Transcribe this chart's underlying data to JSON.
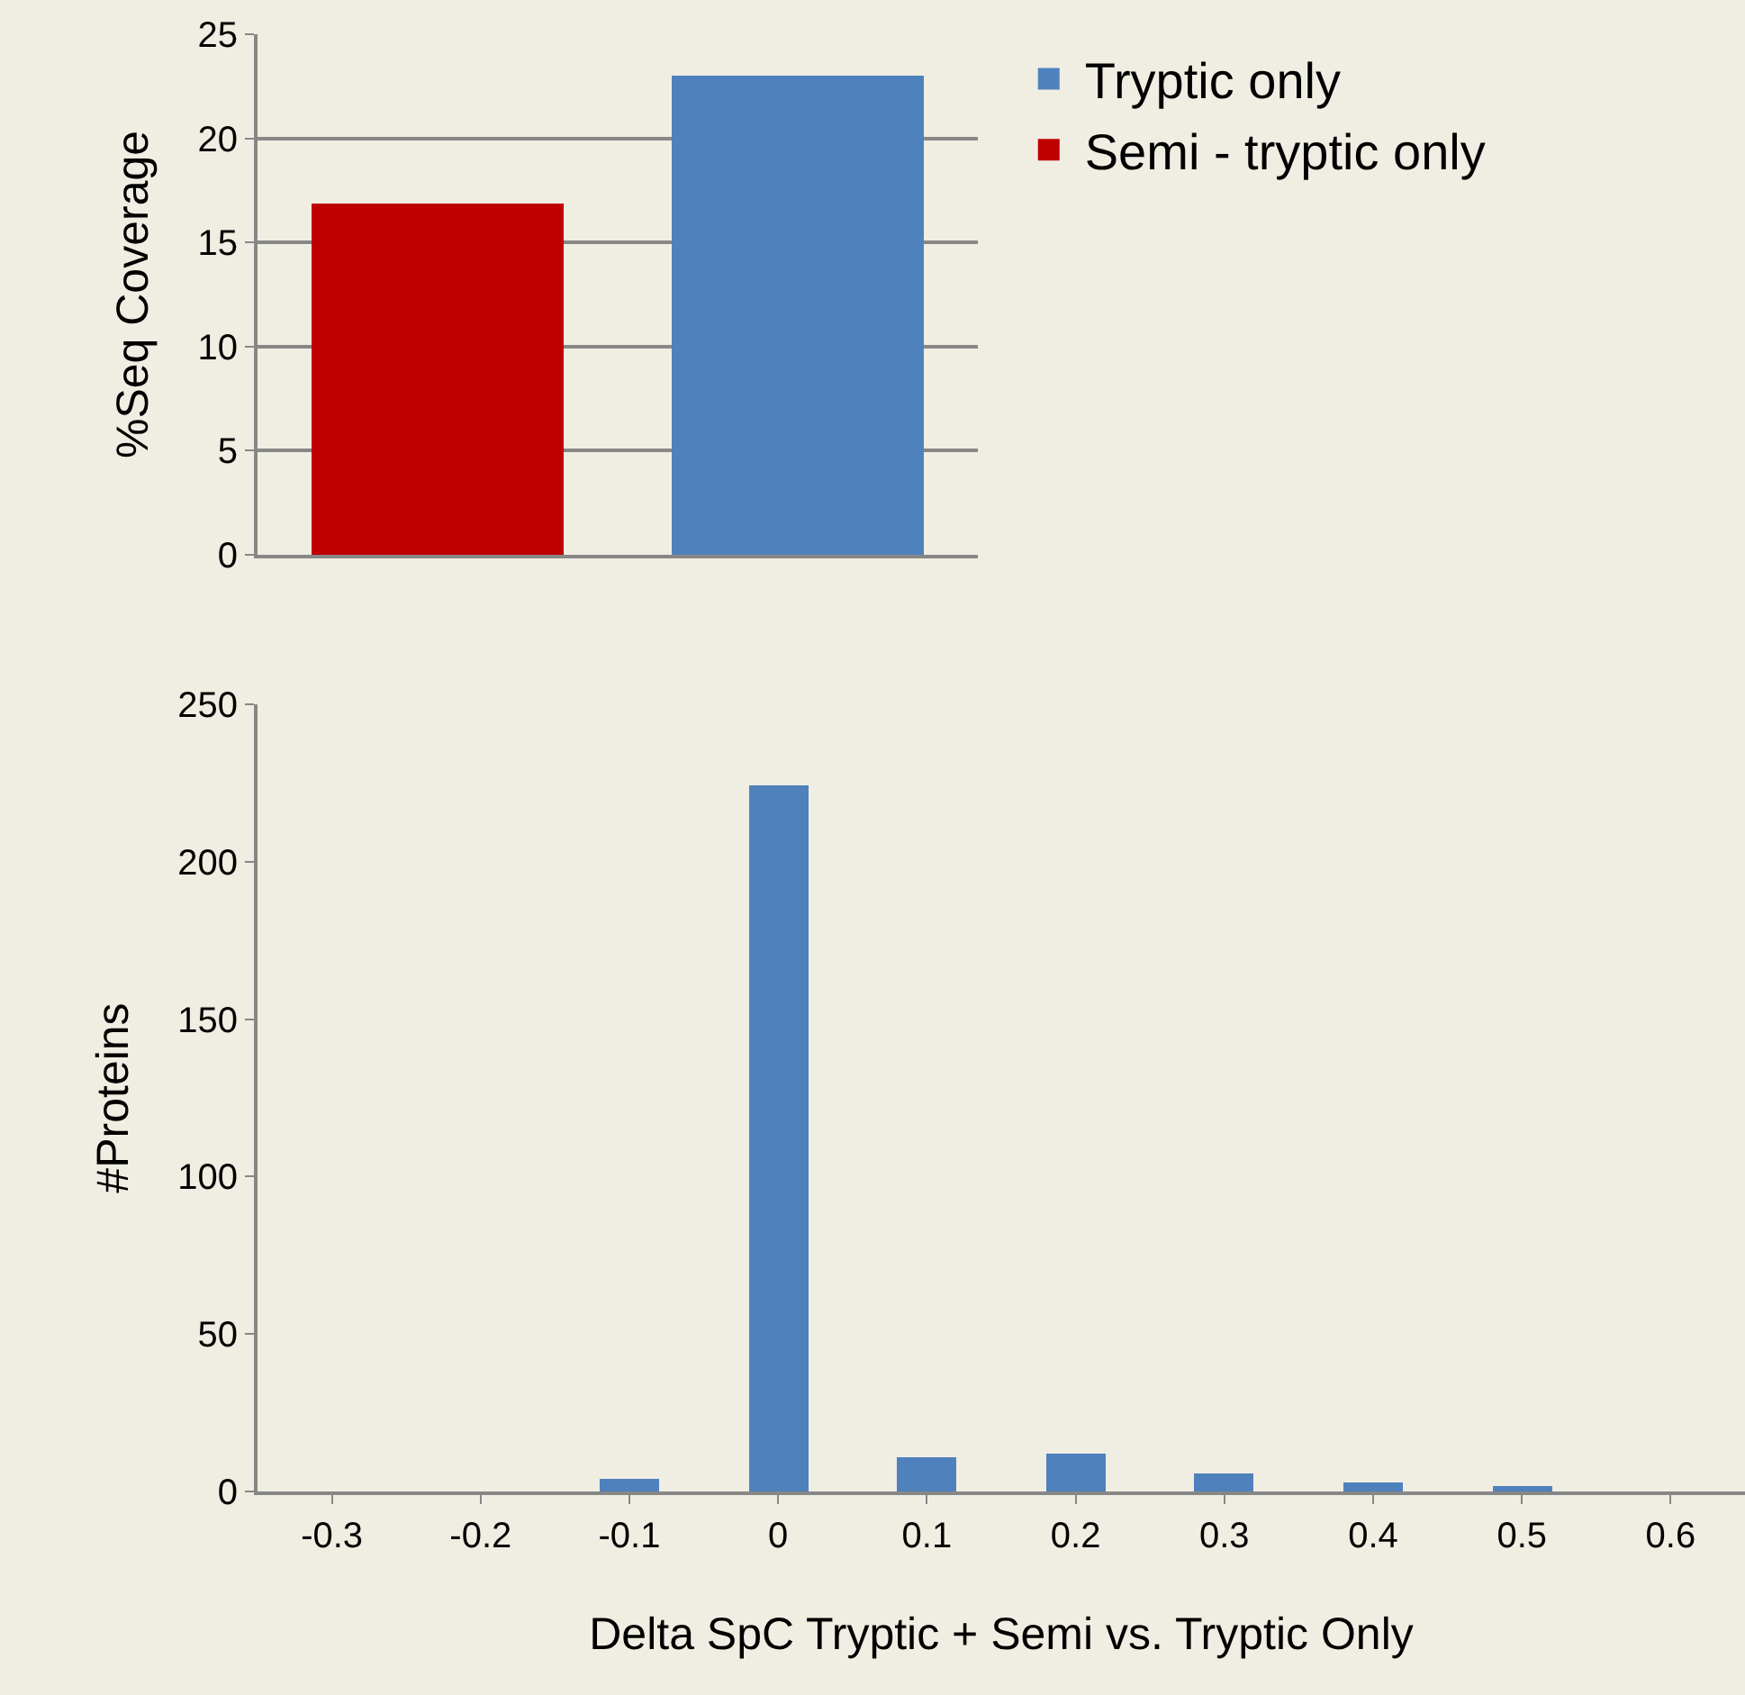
{
  "chart_data": [
    {
      "type": "bar",
      "ylabel": "%Seq Coverage",
      "categories": [
        null
      ],
      "ylim": [
        0,
        25
      ],
      "yticks": [
        0,
        5,
        10,
        15,
        20,
        25
      ],
      "grid": "y",
      "legend": "top right",
      "tick_labels": "y",
      "series": [
        {
          "name": "Semi - tryptic only",
          "color": "#c00000",
          "values": [
            16.9
          ]
        },
        {
          "name": "Tryptic only",
          "color": "#4f81bd",
          "values": [
            23.0
          ]
        }
      ]
    },
    {
      "type": "bar",
      "ylabel": "#Proteins",
      "xlabel": "Delta SpC Tryptic + Semi vs. Tryptic Only",
      "categories": [
        "-0.3",
        "-0.2",
        "-0.1",
        "0",
        "0.1",
        "0.2",
        "0.3",
        "0.4",
        "0.5",
        "0.6"
      ],
      "ylim": [
        0,
        250
      ],
      "yticks": [
        0,
        50,
        100,
        150,
        200,
        250
      ],
      "grid": false,
      "legend": false,
      "series": [
        {
          "color": "#4f81bd",
          "values": [
            0,
            0,
            4,
            224,
            11,
            12,
            6,
            3,
            2,
            0
          ]
        }
      ]
    }
  ]
}
